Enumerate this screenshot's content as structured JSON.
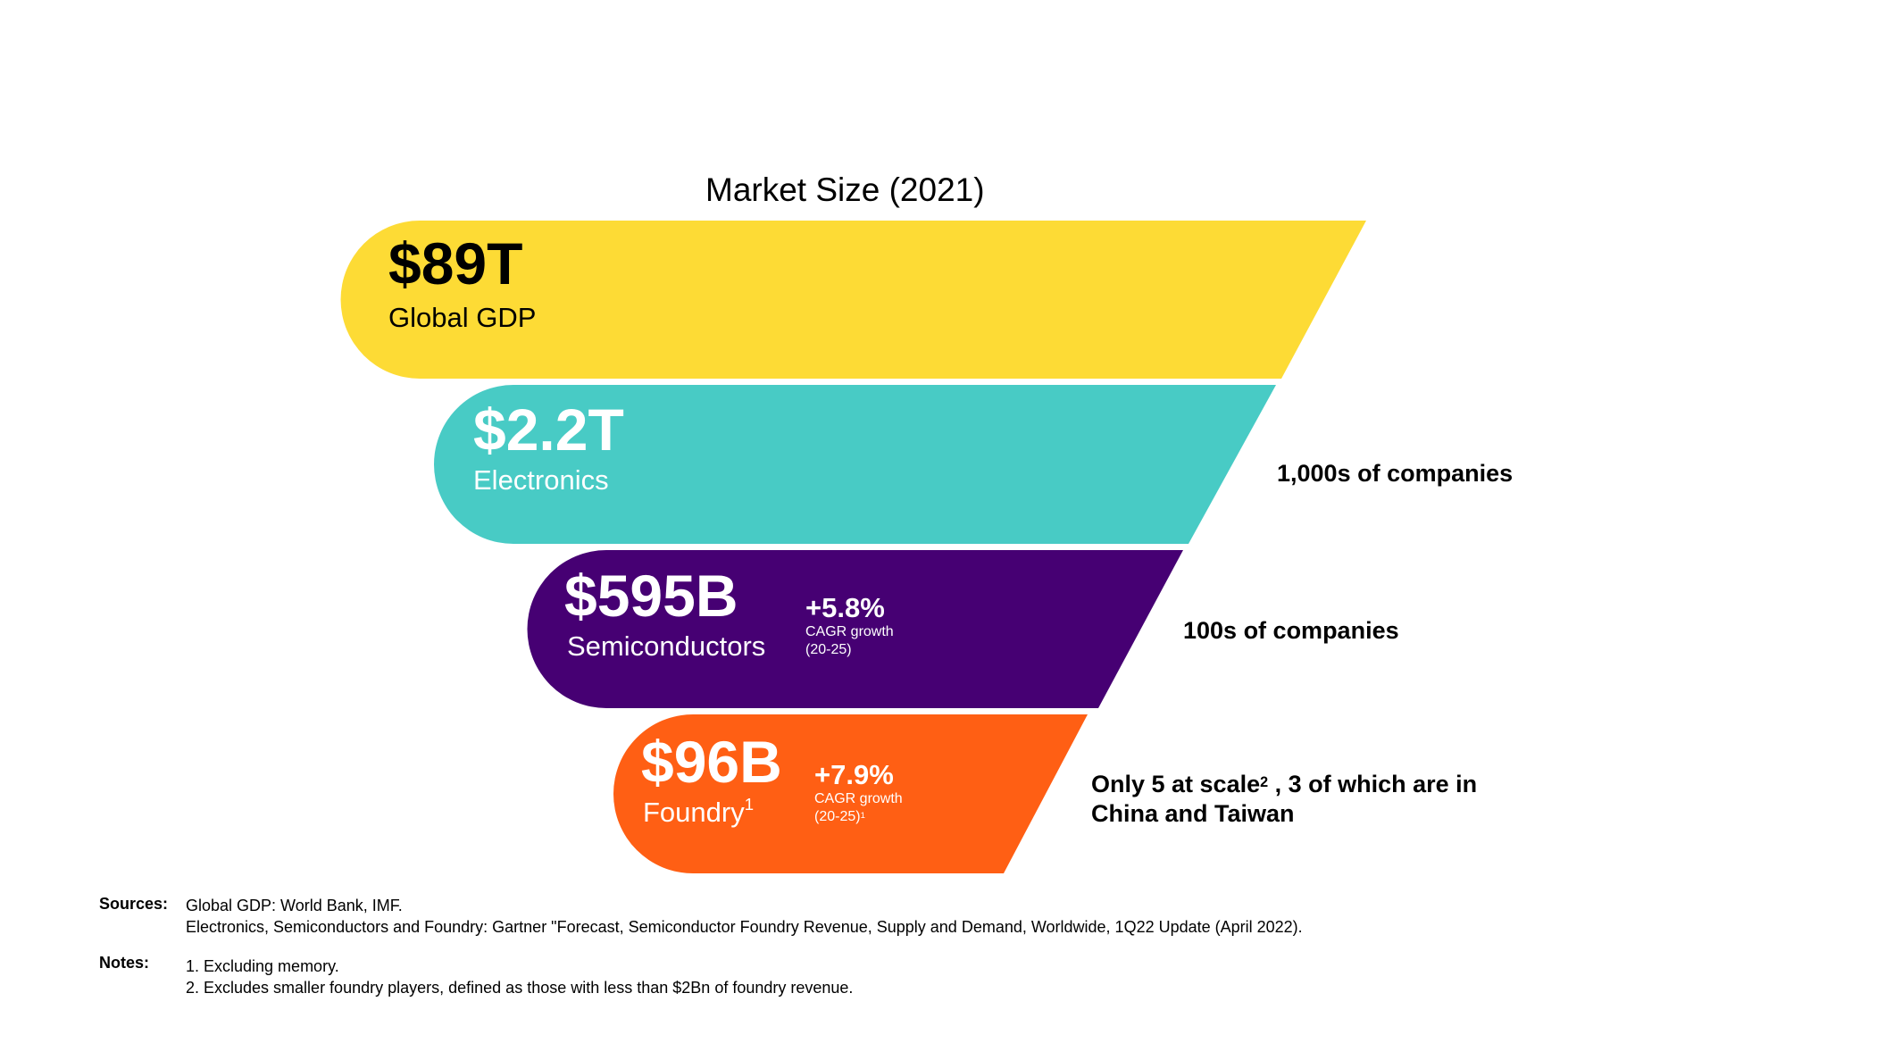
{
  "title": "Market Size (2021)",
  "colors": {
    "gdp": "#FDDB35",
    "electronics": "#48CBC5",
    "semiconductors": "#460073",
    "foundry": "#FF5F14"
  },
  "tiers": {
    "gdp": {
      "value": "$89T",
      "label": "Global GDP"
    },
    "electronics": {
      "value": "$2.2T",
      "label": "Electronics"
    },
    "semiconductors": {
      "value": "$595B",
      "label": "Semiconductors",
      "growth": "+5.8%",
      "growth_label": "CAGR growth",
      "growth_period": "(20-25)"
    },
    "foundry": {
      "value": "$96B",
      "label": "Foundry",
      "label_note": "1",
      "growth": "+7.9%",
      "growth_label": "CAGR growth",
      "growth_period": "(20-25)",
      "growth_note": "1"
    }
  },
  "annotations": {
    "electronics": "1,000s of companies",
    "semiconductors": "100s of companies",
    "foundry_line1_a": "Only 5 at scale",
    "foundry_line1_note": "2",
    "foundry_line1_b": " , 3 of which are in",
    "foundry_line2": "China and Taiwan"
  },
  "sources": {
    "heading": "Sources:",
    "lines": [
      "Global GDP: World Bank, IMF.",
      "Electronics, Semiconductors and Foundry: Gartner \"Forecast, Semiconductor Foundry Revenue, Supply and Demand, Worldwide, 1Q22 Update (April 2022)."
    ]
  },
  "notes": {
    "heading": "Notes:",
    "lines": [
      "1. Excluding memory.",
      "2. Excludes smaller foundry players, defined as those with less than $2Bn of foundry revenue."
    ]
  }
}
